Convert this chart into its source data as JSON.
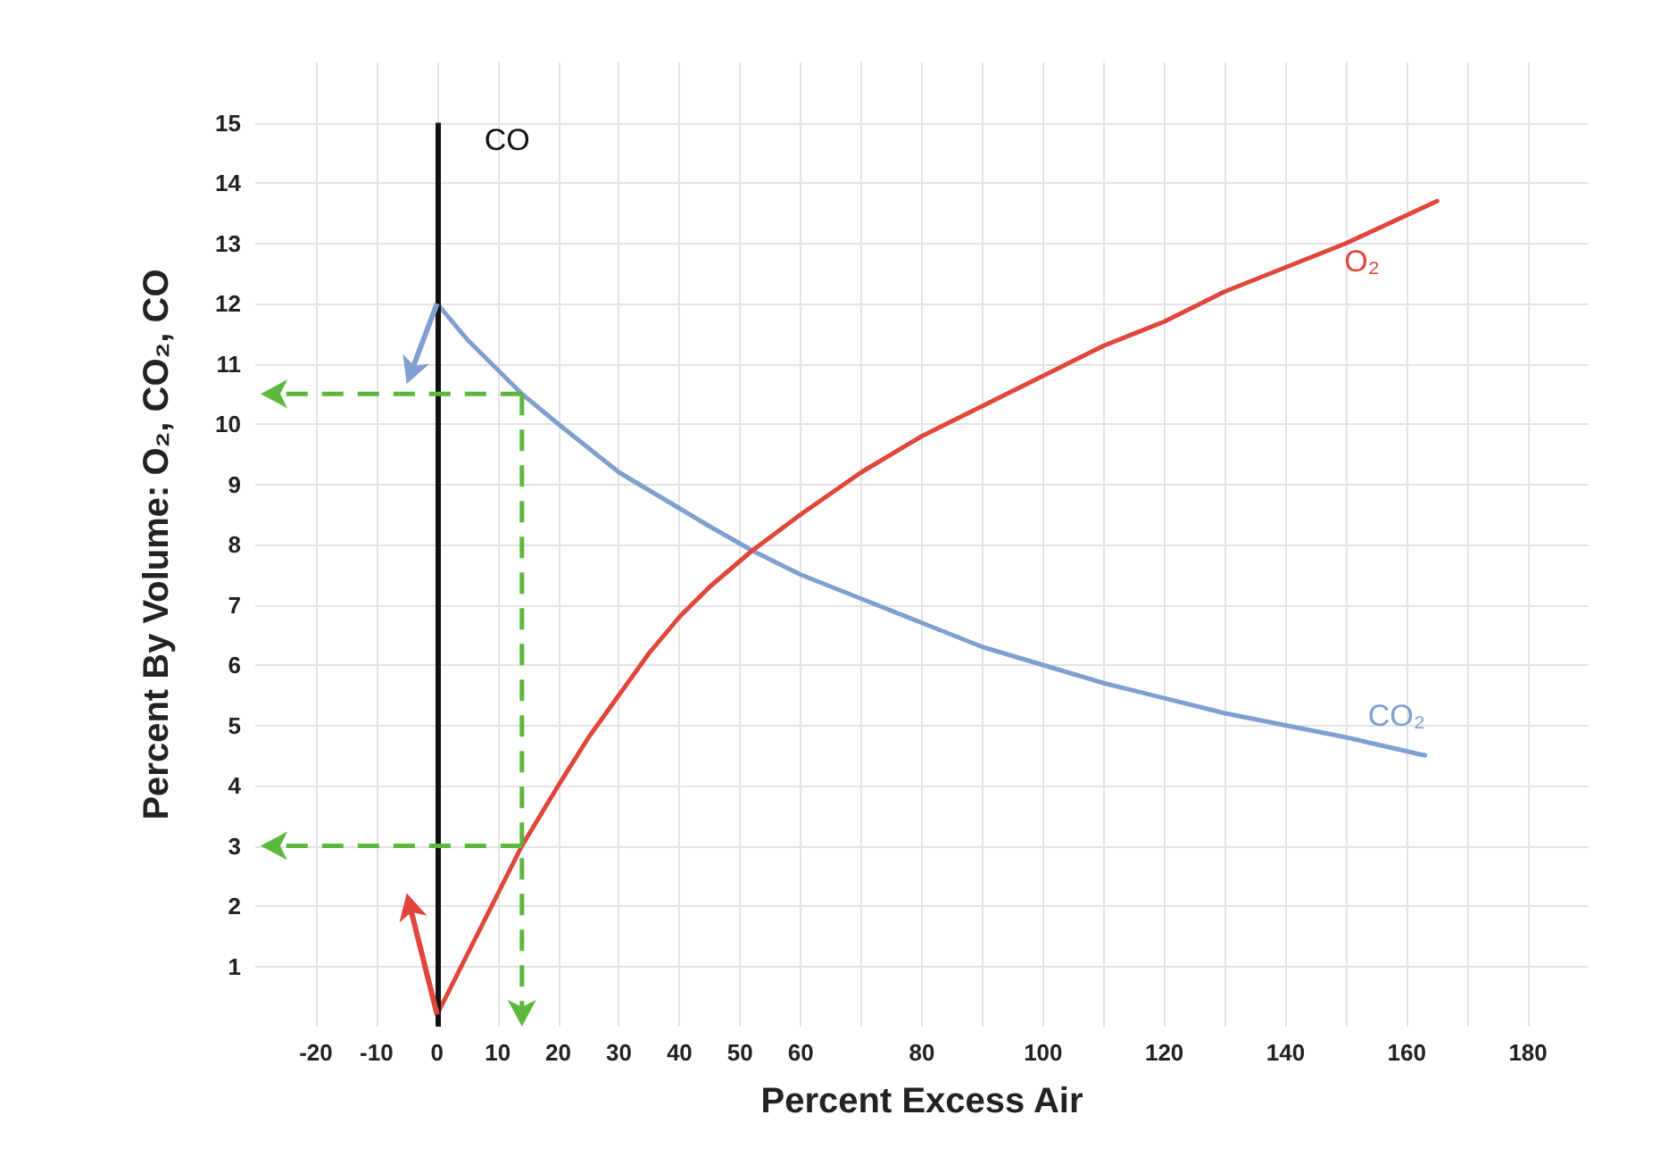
{
  "chart_data": {
    "type": "line",
    "xlabel": "Percent Excess Air",
    "ylabel": "Percent By Volume: O₂, CO₂, CO",
    "xlim": [
      -30,
      190
    ],
    "ylim": [
      0,
      16
    ],
    "xticks": [
      -20,
      -10,
      0,
      10,
      20,
      30,
      40,
      50,
      60,
      {
        "value": 70,
        "label": null
      },
      80,
      {
        "value": 90,
        "label": null
      },
      100,
      {
        "value": 110,
        "label": null
      },
      120,
      {
        "value": 130,
        "label": null
      },
      140,
      {
        "value": 150,
        "label": null
      },
      160,
      {
        "value": 170,
        "label": null
      },
      180
    ],
    "yticks": [
      1,
      2,
      3,
      4,
      5,
      6,
      7,
      8,
      9,
      10,
      11,
      12,
      13,
      14,
      15
    ],
    "grid": true,
    "line_style": "solid",
    "ref_lines": [
      {
        "axis": "x",
        "value": 0,
        "label": "CO",
        "color": "#111111"
      }
    ],
    "series": [
      {
        "name": "CO₂",
        "color": "#7f9fd0",
        "x": [
          0,
          5,
          10,
          14,
          20,
          25,
          30,
          35,
          40,
          45,
          52,
          60,
          70,
          80,
          90,
          100,
          110,
          120,
          130,
          140,
          150,
          163
        ],
        "values": [
          12,
          11.4,
          10.9,
          10.5,
          10.0,
          9.6,
          9.2,
          8.9,
          8.6,
          8.3,
          7.9,
          7.5,
          7.1,
          6.7,
          6.3,
          6.0,
          5.7,
          5.45,
          5.2,
          5.0,
          4.8,
          4.5
        ]
      },
      {
        "name": "O₂",
        "color": "#e0463a",
        "x": [
          0,
          5,
          10,
          14,
          20,
          25,
          30,
          35,
          40,
          45,
          52,
          60,
          70,
          80,
          90,
          100,
          110,
          120,
          130,
          140,
          150,
          165
        ],
        "values": [
          0.2,
          1.2,
          2.2,
          3,
          4.0,
          4.8,
          5.5,
          6.2,
          6.8,
          7.3,
          7.9,
          8.5,
          9.2,
          9.8,
          10.3,
          10.8,
          11.3,
          11.7,
          12.2,
          12.6,
          13.0,
          13.7
        ]
      }
    ]
  }
}
